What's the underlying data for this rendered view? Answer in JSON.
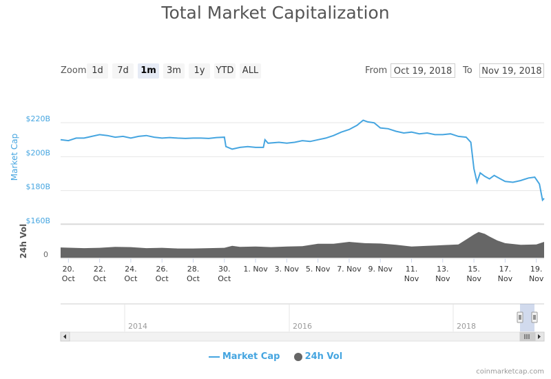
{
  "title": "Total Market Capitalization",
  "zoom": {
    "label": "Zoom",
    "buttons": [
      "1d",
      "7d",
      "1m",
      "3m",
      "1y",
      "YTD",
      "ALL"
    ],
    "active": "1m"
  },
  "range": {
    "from_label": "From",
    "from_value": "Oct 19, 2018",
    "to_label": "To",
    "to_value": "Nov 19, 2018"
  },
  "legend": {
    "market_cap": "Market Cap",
    "vol": "24h Vol"
  },
  "credits": "coinmarketcap.com",
  "navigator": {
    "years": [
      "2014",
      "2016",
      "2018"
    ]
  },
  "colors": {
    "market_cap": "#45a5e0",
    "volume": "#666666",
    "grid": "#e6e6e6",
    "navigator_mask": "rgba(102,133,194,0.3)"
  },
  "chart_data": {
    "type": "line",
    "x_ticks": [
      {
        "day": 20,
        "top": "20.",
        "bottom": "Oct"
      },
      {
        "day": 22,
        "top": "22.",
        "bottom": "Oct"
      },
      {
        "day": 24,
        "top": "24.",
        "bottom": "Oct"
      },
      {
        "day": 26,
        "top": "26.",
        "bottom": "Oct"
      },
      {
        "day": 28,
        "top": "28.",
        "bottom": "Oct"
      },
      {
        "day": 30,
        "top": "30.",
        "bottom": "Oct"
      },
      {
        "day": 32,
        "top": "1. Nov",
        "bottom": ""
      },
      {
        "day": 34,
        "top": "3. Nov",
        "bottom": ""
      },
      {
        "day": 36,
        "top": "5. Nov",
        "bottom": ""
      },
      {
        "day": 38,
        "top": "7. Nov",
        "bottom": ""
      },
      {
        "day": 40,
        "top": "9. Nov",
        "bottom": ""
      },
      {
        "day": 42,
        "top": "11.",
        "bottom": "Nov"
      },
      {
        "day": 44,
        "top": "13.",
        "bottom": "Nov"
      },
      {
        "day": 46,
        "top": "15.",
        "bottom": "Nov"
      },
      {
        "day": 48,
        "top": "17.",
        "bottom": "Nov"
      },
      {
        "day": 50,
        "top": "19.",
        "bottom": "Nov"
      }
    ],
    "xlim_days": [
      19.5,
      50.5
    ],
    "market_cap": {
      "name": "Market Cap",
      "ylabel": "Market Cap",
      "yticks": [
        "$220B",
        "$200B",
        "$180B",
        "$160B"
      ],
      "ytick_values": [
        220,
        200,
        180,
        160
      ],
      "ylim": [
        160,
        222
      ],
      "points": [
        [
          19.5,
          207.5
        ],
        [
          20.0,
          207.0
        ],
        [
          20.5,
          208.5
        ],
        [
          21.0,
          208.5
        ],
        [
          21.5,
          209.5
        ],
        [
          22.0,
          210.5
        ],
        [
          22.5,
          210.0
        ],
        [
          23.0,
          209.0
        ],
        [
          23.5,
          209.5
        ],
        [
          24.0,
          208.5
        ],
        [
          24.5,
          209.5
        ],
        [
          25.0,
          210.0
        ],
        [
          25.5,
          209.0
        ],
        [
          26.0,
          208.5
        ],
        [
          26.5,
          208.8
        ],
        [
          27.0,
          208.5
        ],
        [
          27.5,
          208.3
        ],
        [
          28.0,
          208.5
        ],
        [
          28.5,
          208.5
        ],
        [
          29.0,
          208.3
        ],
        [
          29.5,
          208.8
        ],
        [
          30.0,
          209.0
        ],
        [
          30.1,
          203.5
        ],
        [
          30.5,
          202.0
        ],
        [
          31.0,
          203.0
        ],
        [
          31.5,
          203.5
        ],
        [
          32.0,
          203.0
        ],
        [
          32.5,
          203.0
        ],
        [
          32.6,
          207.5
        ],
        [
          32.8,
          205.5
        ],
        [
          33.5,
          206.0
        ],
        [
          34.0,
          205.5
        ],
        [
          34.5,
          206.0
        ],
        [
          35.0,
          207.0
        ],
        [
          35.5,
          206.5
        ],
        [
          36.0,
          207.5
        ],
        [
          36.5,
          208.5
        ],
        [
          37.0,
          210.0
        ],
        [
          37.5,
          212.0
        ],
        [
          38.0,
          213.5
        ],
        [
          38.5,
          216.0
        ],
        [
          38.9,
          219.0
        ],
        [
          39.2,
          218.0
        ],
        [
          39.6,
          217.5
        ],
        [
          40.0,
          214.5
        ],
        [
          40.5,
          214.0
        ],
        [
          41.0,
          212.5
        ],
        [
          41.5,
          211.5
        ],
        [
          42.0,
          212.0
        ],
        [
          42.5,
          211.0
        ],
        [
          43.0,
          211.5
        ],
        [
          43.5,
          210.5
        ],
        [
          44.0,
          210.5
        ],
        [
          44.5,
          211.0
        ],
        [
          45.0,
          209.5
        ],
        [
          45.5,
          209.0
        ],
        [
          45.8,
          206.0
        ],
        [
          46.0,
          190.5
        ],
        [
          46.2,
          182.5
        ],
        [
          46.4,
          188.0
        ],
        [
          46.7,
          186.0
        ],
        [
          47.0,
          184.5
        ],
        [
          47.3,
          186.5
        ],
        [
          47.7,
          184.5
        ],
        [
          48.0,
          183.0
        ],
        [
          48.5,
          182.5
        ],
        [
          49.0,
          183.5
        ],
        [
          49.5,
          185.0
        ],
        [
          49.9,
          185.5
        ],
        [
          50.2,
          181.5
        ],
        [
          50.4,
          172.0
        ],
        [
          50.5,
          173.0
        ]
      ]
    },
    "volume": {
      "name": "24h Vol",
      "ylabel": "24h Vol",
      "yticks": [
        "0"
      ],
      "ylim": [
        0,
        10
      ],
      "points": [
        [
          19.5,
          3.1
        ],
        [
          21.0,
          2.9
        ],
        [
          22.0,
          3.0
        ],
        [
          23.0,
          3.3
        ],
        [
          24.0,
          3.2
        ],
        [
          25.0,
          2.9
        ],
        [
          26.0,
          3.0
        ],
        [
          27.0,
          2.8
        ],
        [
          28.0,
          2.8
        ],
        [
          29.0,
          2.9
        ],
        [
          30.0,
          3.0
        ],
        [
          30.5,
          3.6
        ],
        [
          31.0,
          3.3
        ],
        [
          32.0,
          3.4
        ],
        [
          33.0,
          3.2
        ],
        [
          34.0,
          3.4
        ],
        [
          35.0,
          3.5
        ],
        [
          36.0,
          4.2
        ],
        [
          37.0,
          4.2
        ],
        [
          38.0,
          4.8
        ],
        [
          39.0,
          4.4
        ],
        [
          40.0,
          4.3
        ],
        [
          41.0,
          3.9
        ],
        [
          42.0,
          3.4
        ],
        [
          43.0,
          3.6
        ],
        [
          44.0,
          3.8
        ],
        [
          45.0,
          4.0
        ],
        [
          45.5,
          5.5
        ],
        [
          46.0,
          7.0
        ],
        [
          46.3,
          7.8
        ],
        [
          46.7,
          7.2
        ],
        [
          47.0,
          6.4
        ],
        [
          47.5,
          5.2
        ],
        [
          48.0,
          4.4
        ],
        [
          49.0,
          3.9
        ],
        [
          50.0,
          4.0
        ],
        [
          50.5,
          4.8
        ]
      ]
    }
  }
}
